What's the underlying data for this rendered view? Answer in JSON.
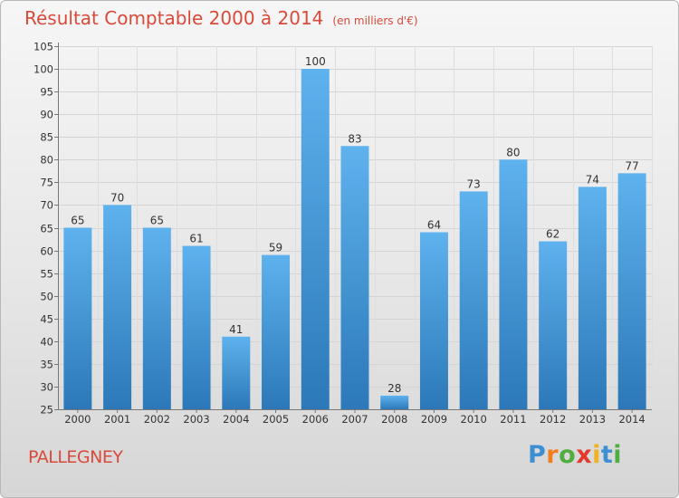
{
  "title": "Résultat Comptable 2000 à 2014",
  "subtitle": "(en milliers d'€)",
  "place": "PALLEGNEY",
  "brand": {
    "letters": [
      {
        "ch": "P",
        "color": "#3d8fd1"
      },
      {
        "ch": "r",
        "color": "#f07f1e"
      },
      {
        "ch": "o",
        "color": "#4fae3f"
      },
      {
        "ch": "x",
        "color": "#e23a2e"
      },
      {
        "ch": "i",
        "color": "#f0b21e"
      },
      {
        "ch": "t",
        "color": "#3d8fd1"
      },
      {
        "ch": "i",
        "color": "#4fae3f"
      }
    ]
  },
  "chart_data": {
    "type": "bar",
    "categories": [
      "2000",
      "2001",
      "2002",
      "2003",
      "2004",
      "2005",
      "2006",
      "2007",
      "2008",
      "2009",
      "2010",
      "2011",
      "2012",
      "2013",
      "2014"
    ],
    "values": [
      65,
      70,
      65,
      61,
      41,
      59,
      100,
      83,
      28,
      64,
      73,
      80,
      62,
      74,
      77
    ],
    "ylim": [
      25,
      105
    ],
    "yticks": [
      25,
      30,
      35,
      40,
      45,
      50,
      55,
      60,
      65,
      70,
      75,
      80,
      85,
      90,
      95,
      100,
      105
    ],
    "grid": true,
    "bar_color_top": "#5eb2ee",
    "bar_color_bottom": "#2c78b8",
    "title_color": "#d94a3a"
  }
}
